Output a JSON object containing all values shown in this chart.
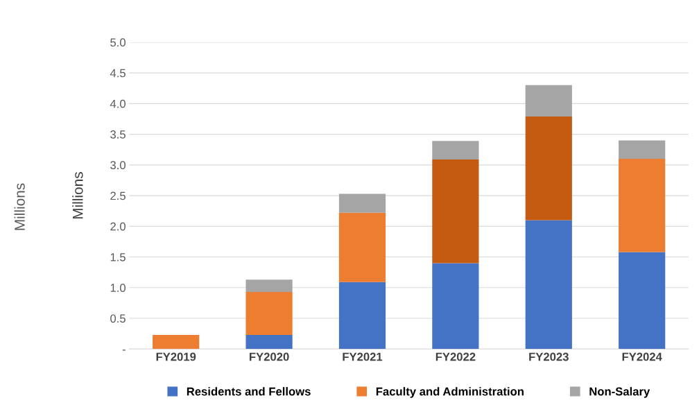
{
  "chart_data": {
    "type": "bar",
    "stacked": true,
    "ylabel": "Millions",
    "annotations": [
      "Millions"
    ],
    "categories": [
      "FY2019",
      "FY2020",
      "FY2021",
      "FY2022",
      "FY2023",
      "FY2024"
    ],
    "series": [
      {
        "name": "Residents and Fellows",
        "color": "#4472c4",
        "values": [
          0,
          0.23,
          1.09,
          1.4,
          2.1,
          1.58
        ]
      },
      {
        "name": "Faculty and Administration",
        "color": "#ed7d31",
        "colors": [
          "#ed7d31",
          "#ed7d31",
          "#ed7d31",
          "#c55a11",
          "#c55a11",
          "#ed7d31"
        ],
        "values": [
          0.23,
          0.7,
          1.13,
          1.69,
          1.69,
          1.52
        ]
      },
      {
        "name": "Non-Salary",
        "color": "#a5a5a5",
        "values": [
          0,
          0.2,
          0.31,
          0.3,
          0.51,
          0.3
        ]
      }
    ],
    "ylim": [
      0,
      5
    ],
    "yticks": [
      {
        "value": 0,
        "label": "-"
      },
      {
        "value": 0.5,
        "label": "0.5"
      },
      {
        "value": 1,
        "label": "1.0"
      },
      {
        "value": 1.5,
        "label": "1.5"
      },
      {
        "value": 2,
        "label": "2.0"
      },
      {
        "value": 2.5,
        "label": "2.5"
      },
      {
        "value": 3,
        "label": "3.0"
      },
      {
        "value": 3.5,
        "label": "3.5"
      },
      {
        "value": 4,
        "label": "4.0"
      },
      {
        "value": 4.5,
        "label": "4.5"
      },
      {
        "value": 5,
        "label": "5.0"
      }
    ],
    "grid": "y",
    "legend": "bottom"
  }
}
